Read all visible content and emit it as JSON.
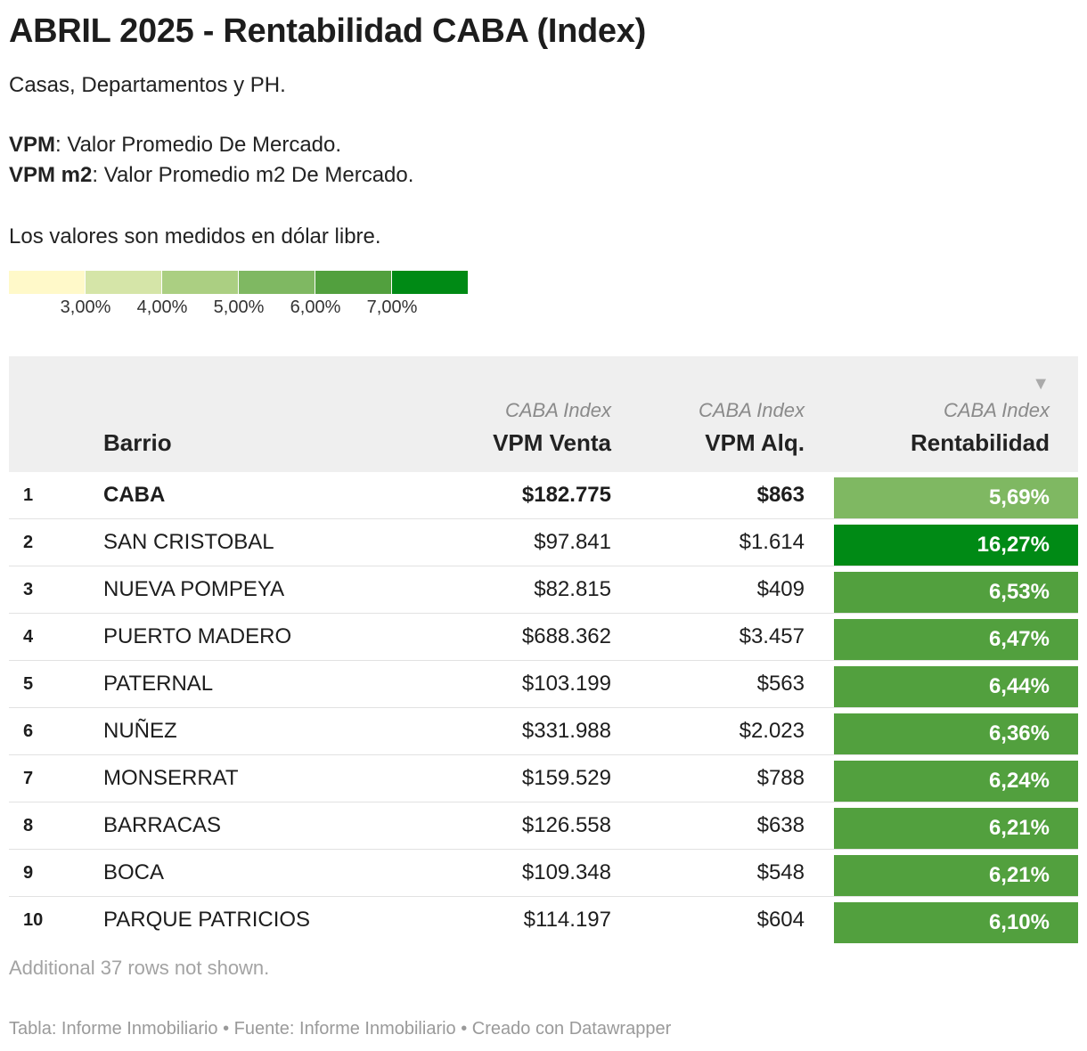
{
  "chart_data": {
    "type": "table",
    "title": "ABRIL 2025 - Rentabilidad CABA (Index)",
    "description": {
      "line1": "Casas, Departamentos y PH.",
      "vpm_term": "VPM",
      "vpm_def": ": Valor Promedio De Mercado.",
      "vpmm2_term": "VPM m2",
      "vpmm2_def": ": Valor Promedio m2 De Mercado.",
      "line4": "Los valores son medidos en dólar libre."
    },
    "legend": {
      "colors": [
        "#fff9c9",
        "#d5e5a8",
        "#abcf82",
        "#7fb862",
        "#52a03e",
        "#008a15"
      ],
      "labels": [
        "3,00%",
        "4,00%",
        "5,00%",
        "6,00%",
        "7,00%"
      ]
    },
    "columns": [
      {
        "key": "rank",
        "label": "",
        "sub": ""
      },
      {
        "key": "barrio",
        "label": "Barrio",
        "sub": ""
      },
      {
        "key": "venta",
        "label": "VPM Venta",
        "sub": "CABA Index"
      },
      {
        "key": "alq",
        "label": "VPM Alq.",
        "sub": "CABA Index"
      },
      {
        "key": "rent",
        "label": "Rentabilidad",
        "sub": "CABA Index"
      }
    ],
    "sort_indicator": "▼",
    "rows": [
      {
        "rank": "1",
        "barrio": "CABA",
        "venta": "$182.775",
        "alq": "$863",
        "rent": "5,69%",
        "rent_value": 5.69,
        "color": "#7fb862",
        "bold": true
      },
      {
        "rank": "2",
        "barrio": "SAN CRISTOBAL",
        "venta": "$97.841",
        "alq": "$1.614",
        "rent": "16,27%",
        "rent_value": 16.27,
        "color": "#008a15",
        "bold": false
      },
      {
        "rank": "3",
        "barrio": "NUEVA POMPEYA",
        "venta": "$82.815",
        "alq": "$409",
        "rent": "6,53%",
        "rent_value": 6.53,
        "color": "#52a03e",
        "bold": false
      },
      {
        "rank": "4",
        "barrio": "PUERTO MADERO",
        "venta": "$688.362",
        "alq": "$3.457",
        "rent": "6,47%",
        "rent_value": 6.47,
        "color": "#52a03e",
        "bold": false
      },
      {
        "rank": "5",
        "barrio": "PATERNAL",
        "venta": "$103.199",
        "alq": "$563",
        "rent": "6,44%",
        "rent_value": 6.44,
        "color": "#52a03e",
        "bold": false
      },
      {
        "rank": "6",
        "barrio": "NUÑEZ",
        "venta": "$331.988",
        "alq": "$2.023",
        "rent": "6,36%",
        "rent_value": 6.36,
        "color": "#52a03e",
        "bold": false
      },
      {
        "rank": "7",
        "barrio": "MONSERRAT",
        "venta": "$159.529",
        "alq": "$788",
        "rent": "6,24%",
        "rent_value": 6.24,
        "color": "#52a03e",
        "bold": false
      },
      {
        "rank": "8",
        "barrio": "BARRACAS",
        "venta": "$126.558",
        "alq": "$638",
        "rent": "6,21%",
        "rent_value": 6.21,
        "color": "#52a03e",
        "bold": false
      },
      {
        "rank": "9",
        "barrio": "BOCA",
        "venta": "$109.348",
        "alq": "$548",
        "rent": "6,21%",
        "rent_value": 6.21,
        "color": "#52a03e",
        "bold": false
      },
      {
        "rank": "10",
        "barrio": "PARQUE PATRICIOS",
        "venta": "$114.197",
        "alq": "$604",
        "rent": "6,10%",
        "rent_value": 6.1,
        "color": "#52a03e",
        "bold": false
      }
    ],
    "notes": "Additional 37 rows not shown.",
    "footer": "Tabla: Informe Inmobiliario • Fuente: Informe Inmobiliario • Creado con Datawrapper"
  }
}
